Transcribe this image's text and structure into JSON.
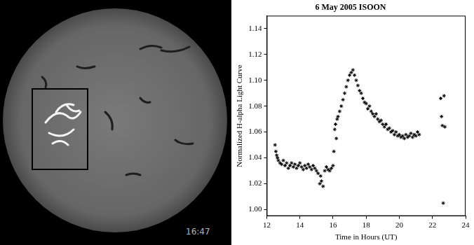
{
  "image": {
    "timestamp": "16:47"
  },
  "chart_data": {
    "type": "scatter",
    "title": "6 May 2005 ISOON",
    "x_label": "Time in Hours (UT)",
    "y_label": "Normalized H-alpha Light Curve",
    "marker": "star",
    "color": "#000000",
    "grid": false,
    "xlim": [
      12,
      24
    ],
    "xticks": [
      12,
      14,
      16,
      18,
      20,
      22,
      24
    ],
    "ylim": [
      0.995,
      1.15
    ],
    "yticks": [
      {
        "value": 1.0,
        "label": "1.00"
      },
      1.02,
      1.04,
      1.06,
      1.08,
      {
        "value": 1.1,
        "label": "1.10"
      },
      1.12,
      1.14
    ],
    "x": [
      12.5,
      12.55,
      12.6,
      12.65,
      12.7,
      12.8,
      12.9,
      13.0,
      13.1,
      13.2,
      13.3,
      13.4,
      13.5,
      13.6,
      13.7,
      13.8,
      13.9,
      14.0,
      14.1,
      14.2,
      14.3,
      14.4,
      14.5,
      14.6,
      14.7,
      14.8,
      14.9,
      15.0,
      15.1,
      15.2,
      15.25,
      15.3,
      15.4,
      15.5,
      15.6,
      15.7,
      15.8,
      15.9,
      16.0,
      16.05,
      16.1,
      16.15,
      16.2,
      16.25,
      16.3,
      16.4,
      16.5,
      16.6,
      16.7,
      16.8,
      16.9,
      17.0,
      17.1,
      17.2,
      17.3,
      17.4,
      17.5,
      17.6,
      17.7,
      17.8,
      17.9,
      18.0,
      18.1,
      18.2,
      18.3,
      18.4,
      18.5,
      18.6,
      18.7,
      18.8,
      18.9,
      19.0,
      19.1,
      19.2,
      19.3,
      19.4,
      19.5,
      19.6,
      19.7,
      19.8,
      19.9,
      20.0,
      20.1,
      20.2,
      20.3,
      20.4,
      20.5,
      20.6,
      20.7,
      20.8,
      20.9,
      21.0,
      21.1,
      21.2,
      22.5,
      22.55,
      22.6,
      22.65,
      22.7,
      22.75
    ],
    "values": [
      1.05,
      1.045,
      1.042,
      1.04,
      1.038,
      1.036,
      1.035,
      1.038,
      1.034,
      1.036,
      1.032,
      1.034,
      1.036,
      1.033,
      1.035,
      1.032,
      1.034,
      1.036,
      1.033,
      1.031,
      1.034,
      1.032,
      1.035,
      1.033,
      1.031,
      1.034,
      1.032,
      1.03,
      1.028,
      1.02,
      1.026,
      1.022,
      1.018,
      1.03,
      1.033,
      1.031,
      1.03,
      1.032,
      1.034,
      1.045,
      1.062,
      1.066,
      1.055,
      1.07,
      1.072,
      1.076,
      1.08,
      1.085,
      1.09,
      1.095,
      1.1,
      1.104,
      1.106,
      1.108,
      1.104,
      1.1,
      1.096,
      1.092,
      1.09,
      1.086,
      1.083,
      1.082,
      1.078,
      1.08,
      1.076,
      1.074,
      1.072,
      1.074,
      1.07,
      1.068,
      1.069,
      1.066,
      1.064,
      1.066,
      1.062,
      1.063,
      1.06,
      1.061,
      1.058,
      1.06,
      1.057,
      1.058,
      1.056,
      1.057,
      1.055,
      1.058,
      1.056,
      1.057,
      1.059,
      1.056,
      1.058,
      1.057,
      1.06,
      1.058,
      1.086,
      1.072,
      1.065,
      1.005,
      1.088,
      1.064
    ]
  }
}
